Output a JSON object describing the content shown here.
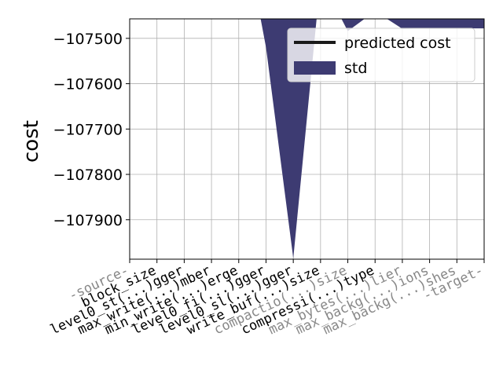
{
  "chart_data": {
    "type": "line",
    "ylabel": "cost",
    "categories": [
      "-source-",
      "block_size",
      "level0_st(...)gger",
      "max_write(...)mber",
      "min_write(...)erge",
      "level0_fi(...)gger",
      "level0_sl(...)gger",
      "write_buf(...)size",
      "compactio(...)size",
      "compressi(...)type",
      "max_bytes(...)lier",
      "max_backg(...)ions",
      "max_backg(...)shes",
      "-target-"
    ],
    "category_colors": [
      "#888888",
      "#000000",
      "#000000",
      "#000000",
      "#000000",
      "#000000",
      "#000000",
      "#000000",
      "#888888",
      "#000000",
      "#888888",
      "#888888",
      "#888888",
      "#888888"
    ],
    "series": [
      {
        "name": "predicted cost",
        "color": "#1a1a1a",
        "values": [
          null,
          null,
          null,
          null,
          null,
          null,
          null,
          null,
          null,
          null,
          null,
          null,
          null,
          null
        ]
      },
      {
        "name": "std",
        "color": "#3d3b72",
        "fill": true,
        "values": [
          null,
          null,
          null,
          null,
          -107200,
          -107520,
          -107985,
          -107368,
          -107484,
          -107440,
          -107479,
          -107478,
          -107478,
          -107478
        ]
      }
    ],
    "ylim": [
      -107987,
      -107457
    ],
    "yticks": [
      {
        "value": -107500,
        "label": "−107500"
      },
      {
        "value": -107600,
        "label": "−107600"
      },
      {
        "value": -107700,
        "label": "−107700"
      },
      {
        "value": -107800,
        "label": "−107800"
      },
      {
        "value": -107900,
        "label": "−107900"
      }
    ],
    "grid": true,
    "legend": "upper right"
  }
}
